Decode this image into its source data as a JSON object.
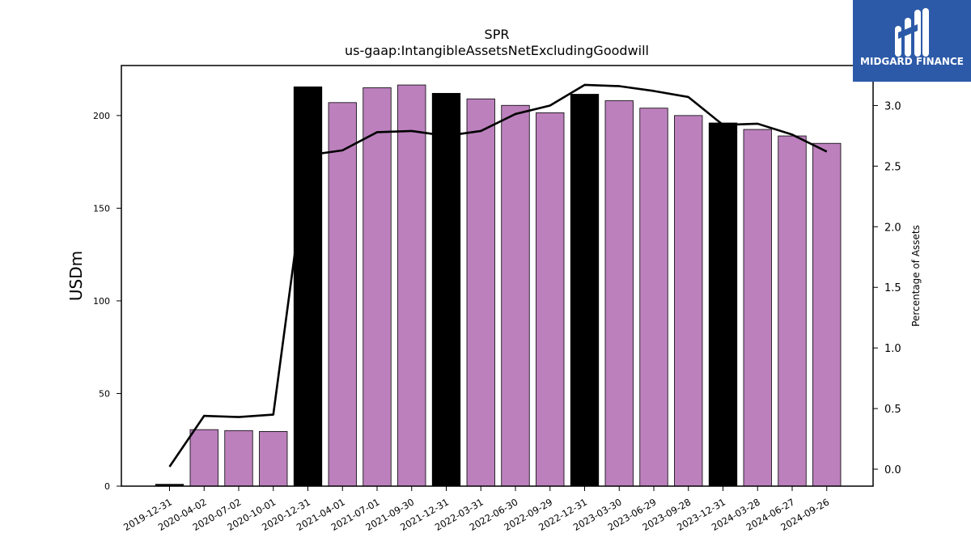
{
  "brand": {
    "name": "MIDGARD FINANCE",
    "bg_color": "#2c5aa8"
  },
  "chart_data": {
    "type": "bar",
    "title": "SPR",
    "subtitle": "us-gaap:IntangibleAssetsNetExcludingGoodwill",
    "ylabel": "USDm",
    "y2label": "Percentage of Assets",
    "categories": [
      "2019-12-31",
      "2020-04-02",
      "2020-07-02",
      "2020-10-01",
      "2020-12-31",
      "2021-04-01",
      "2021-07-01",
      "2021-09-30",
      "2021-12-31",
      "2022-03-31",
      "2022-06-30",
      "2022-09-29",
      "2022-12-31",
      "2023-03-30",
      "2023-06-29",
      "2023-09-28",
      "2023-12-31",
      "2024-03-28",
      "2024-06-27",
      "2024-09-26"
    ],
    "series": [
      {
        "values": [
          1.0,
          30.5,
          30.0,
          29.5,
          215.5,
          207.0,
          215.0,
          216.5,
          212.0,
          209.0,
          205.5,
          201.5,
          211.5,
          208.0,
          204.0,
          200.0,
          196.0,
          192.5,
          189.0,
          185.0
        ],
        "axis": "left",
        "kind": "bar",
        "colors": [
          "#000000",
          "#bc80bd",
          "#bc80bd",
          "#bc80bd",
          "#000000",
          "#bc80bd",
          "#bc80bd",
          "#bc80bd",
          "#000000",
          "#bc80bd",
          "#bc80bd",
          "#bc80bd",
          "#000000",
          "#bc80bd",
          "#bc80bd",
          "#bc80bd",
          "#000000",
          "#bc80bd",
          "#bc80bd",
          "#bc80bd"
        ]
      },
      {
        "values": [
          0.02,
          0.44,
          0.43,
          0.45,
          2.59,
          2.63,
          2.78,
          2.79,
          2.75,
          2.79,
          2.93,
          3.0,
          3.17,
          3.16,
          3.12,
          3.07,
          2.84,
          2.85,
          2.76,
          2.62
        ],
        "axis": "right",
        "kind": "line",
        "color": "#000000"
      }
    ],
    "yticks": [
      0,
      50,
      100,
      150,
      200
    ],
    "y2ticks": [
      0.0,
      0.5,
      1.0,
      1.5,
      2.0,
      2.5,
      3.0
    ],
    "ylim": [
      0,
      227
    ],
    "y2lim": [
      -0.14,
      3.33
    ],
    "grid": false
  }
}
